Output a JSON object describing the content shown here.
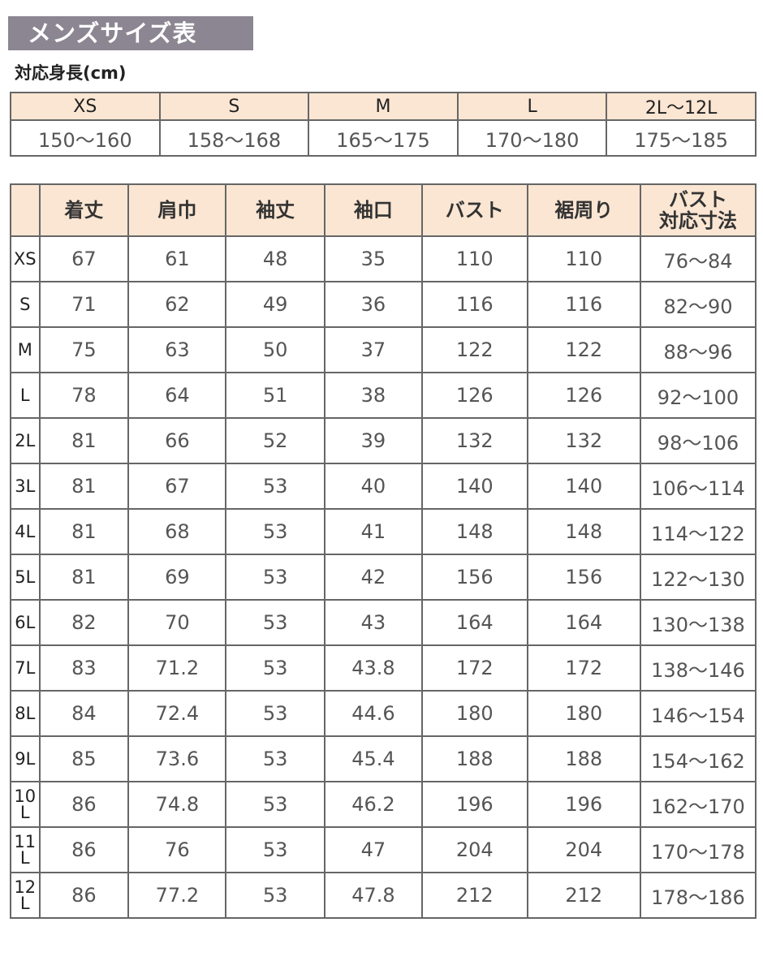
{
  "title": "メンズサイズ表",
  "height_label": "対応身長(cm)",
  "height_table": {
    "sizes": [
      "XS",
      "S",
      "M",
      "L",
      "2L〜12L"
    ],
    "ranges": [
      "150〜160",
      "158〜168",
      "165〜175",
      "170〜180",
      "175〜185"
    ]
  },
  "size_table": {
    "headers": [
      "",
      "着丈",
      "肩巾",
      "袖丈",
      "袖口",
      "バスト",
      "裾周り",
      "バスト\n対応寸法"
    ],
    "rows": [
      [
        "XS",
        "67",
        "61",
        "48",
        "35",
        "110",
        "110",
        "76〜84"
      ],
      [
        "S",
        "71",
        "62",
        "49",
        "36",
        "116",
        "116",
        "82〜90"
      ],
      [
        "M",
        "75",
        "63",
        "50",
        "37",
        "122",
        "122",
        "88〜96"
      ],
      [
        "L",
        "78",
        "64",
        "51",
        "38",
        "126",
        "126",
        "92〜100"
      ],
      [
        "2L",
        "81",
        "66",
        "52",
        "39",
        "132",
        "132",
        "98〜106"
      ],
      [
        "3L",
        "81",
        "67",
        "53",
        "40",
        "140",
        "140",
        "106〜114"
      ],
      [
        "4L",
        "81",
        "68",
        "53",
        "41",
        "148",
        "148",
        "114〜122"
      ],
      [
        "5L",
        "81",
        "69",
        "53",
        "42",
        "156",
        "156",
        "122〜130"
      ],
      [
        "6L",
        "82",
        "70",
        "53",
        "43",
        "164",
        "164",
        "130〜138"
      ],
      [
        "7L",
        "83",
        "71.2",
        "53",
        "43.8",
        "172",
        "172",
        "138〜146"
      ],
      [
        "8L",
        "84",
        "72.4",
        "53",
        "44.6",
        "180",
        "180",
        "146〜154"
      ],
      [
        "9L",
        "85",
        "73.6",
        "53",
        "45.4",
        "188",
        "188",
        "154〜162"
      ],
      [
        "10L",
        "86",
        "74.8",
        "53",
        "46.2",
        "196",
        "196",
        "162〜170"
      ],
      [
        "11L",
        "86",
        "76",
        "53",
        "47",
        "204",
        "204",
        "170〜178"
      ],
      [
        "12L",
        "86",
        "77.2",
        "53",
        "47.8",
        "212",
        "212",
        "178〜186"
      ]
    ]
  },
  "colors": {
    "title_bg": "#8b8692",
    "header_bg": "#fbe6d3"
  }
}
